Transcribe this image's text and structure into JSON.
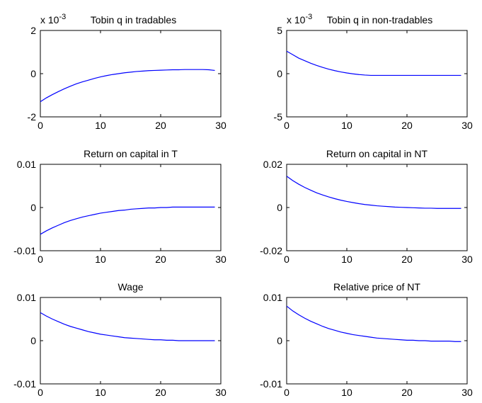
{
  "figure": {
    "background": "#ffffff",
    "line_color": "#0000ff"
  },
  "chart_data": [
    {
      "type": "line",
      "title": "Tobin q in tradables",
      "exponent_label": "x 10",
      "exponent_power": "-3",
      "xlim": [
        0,
        30
      ],
      "ylim": [
        -2,
        2
      ],
      "xticks": [
        0,
        10,
        20,
        30
      ],
      "yticks": [
        -2,
        0,
        2
      ],
      "x": [
        0,
        1,
        2,
        3,
        4,
        5,
        6,
        7,
        8,
        9,
        10,
        11,
        12,
        13,
        14,
        15,
        16,
        17,
        18,
        19,
        20,
        21,
        22,
        23,
        24,
        25,
        26,
        27,
        28,
        29
      ],
      "series": [
        {
          "values": [
            -1.3,
            -1.12,
            -0.97,
            -0.83,
            -0.7,
            -0.58,
            -0.47,
            -0.38,
            -0.3,
            -0.22,
            -0.15,
            -0.09,
            -0.04,
            0.0,
            0.04,
            0.07,
            0.1,
            0.12,
            0.14,
            0.15,
            0.16,
            0.17,
            0.18,
            0.18,
            0.19,
            0.19,
            0.19,
            0.19,
            0.18,
            0.15
          ]
        }
      ]
    },
    {
      "type": "line",
      "title": "Tobin q in non-tradables",
      "exponent_label": "x 10",
      "exponent_power": "-3",
      "xlim": [
        0,
        30
      ],
      "ylim": [
        -5,
        5
      ],
      "xticks": [
        0,
        10,
        20,
        30
      ],
      "yticks": [
        -5,
        0,
        5
      ],
      "x": [
        0,
        1,
        2,
        3,
        4,
        5,
        6,
        7,
        8,
        9,
        10,
        11,
        12,
        13,
        14,
        15,
        16,
        17,
        18,
        19,
        20,
        21,
        22,
        23,
        24,
        25,
        26,
        27,
        28,
        29
      ],
      "series": [
        {
          "values": [
            2.6,
            2.2,
            1.8,
            1.5,
            1.2,
            0.95,
            0.72,
            0.52,
            0.35,
            0.2,
            0.08,
            -0.02,
            -0.1,
            -0.16,
            -0.2,
            -0.2,
            -0.2,
            -0.2,
            -0.2,
            -0.2,
            -0.2,
            -0.2,
            -0.2,
            -0.2,
            -0.2,
            -0.2,
            -0.2,
            -0.2,
            -0.2,
            -0.2
          ]
        }
      ]
    },
    {
      "type": "line",
      "title": "Return on capital in T",
      "xlim": [
        0,
        30
      ],
      "ylim": [
        -0.01,
        0.01
      ],
      "xticks": [
        0,
        10,
        20,
        30
      ],
      "yticks": [
        -0.01,
        0,
        0.01
      ],
      "ytick_labels": [
        "-0.01",
        "0",
        "0.01"
      ],
      "x": [
        0,
        1,
        2,
        3,
        4,
        5,
        6,
        7,
        8,
        9,
        10,
        11,
        12,
        13,
        14,
        15,
        16,
        17,
        18,
        19,
        20,
        21,
        22,
        23,
        24,
        25,
        26,
        27,
        28,
        29
      ],
      "series": [
        {
          "values": [
            -0.0062,
            -0.0054,
            -0.0047,
            -0.0041,
            -0.0035,
            -0.003,
            -0.0026,
            -0.0022,
            -0.0019,
            -0.0016,
            -0.0013,
            -0.0011,
            -0.0009,
            -0.0007,
            -0.0006,
            -0.0004,
            -0.0003,
            -0.0002,
            -0.0001,
            -0.0001,
            0.0,
            0.0,
            0.0001,
            0.0001,
            0.0001,
            0.0001,
            0.0001,
            0.0001,
            0.0001,
            0.0001
          ]
        }
      ]
    },
    {
      "type": "line",
      "title": "Return on capital in NT",
      "xlim": [
        0,
        30
      ],
      "ylim": [
        -0.02,
        0.02
      ],
      "xticks": [
        0,
        10,
        20,
        30
      ],
      "yticks": [
        -0.02,
        0,
        0.02
      ],
      "ytick_labels": [
        "-0.02",
        "0",
        "0.02"
      ],
      "x": [
        0,
        1,
        2,
        3,
        4,
        5,
        6,
        7,
        8,
        9,
        10,
        11,
        12,
        13,
        14,
        15,
        16,
        17,
        18,
        19,
        20,
        21,
        22,
        23,
        24,
        25,
        26,
        27,
        28,
        29
      ],
      "series": [
        {
          "values": [
            0.0145,
            0.0125,
            0.0108,
            0.0093,
            0.008,
            0.0068,
            0.0058,
            0.0049,
            0.0041,
            0.0034,
            0.0028,
            0.0023,
            0.0018,
            0.0014,
            0.0011,
            0.0008,
            0.0006,
            0.0004,
            0.0002,
            0.0001,
            0.0,
            -0.0001,
            -0.0002,
            -0.0003,
            -0.0003,
            -0.0004,
            -0.0004,
            -0.0004,
            -0.0004,
            -0.0004
          ]
        }
      ]
    },
    {
      "type": "line",
      "title": "Wage",
      "xlim": [
        0,
        30
      ],
      "ylim": [
        -0.01,
        0.01
      ],
      "xticks": [
        0,
        10,
        20,
        30
      ],
      "yticks": [
        -0.01,
        0,
        0.01
      ],
      "ytick_labels": [
        "-0.01",
        "0",
        "0.01"
      ],
      "x": [
        0,
        1,
        2,
        3,
        4,
        5,
        6,
        7,
        8,
        9,
        10,
        11,
        12,
        13,
        14,
        15,
        16,
        17,
        18,
        19,
        20,
        21,
        22,
        23,
        24,
        25,
        26,
        27,
        28,
        29
      ],
      "series": [
        {
          "values": [
            0.0065,
            0.0057,
            0.005,
            0.0044,
            0.0038,
            0.0033,
            0.0029,
            0.0025,
            0.0021,
            0.0018,
            0.0015,
            0.0013,
            0.0011,
            0.0009,
            0.0007,
            0.0006,
            0.0005,
            0.0004,
            0.0003,
            0.0002,
            0.0002,
            0.0001,
            0.0001,
            0.0,
            0.0,
            0.0,
            0.0,
            0.0,
            0.0,
            0.0
          ]
        }
      ]
    },
    {
      "type": "line",
      "title": "Relative price of NT",
      "xlim": [
        0,
        30
      ],
      "ylim": [
        -0.01,
        0.01
      ],
      "xticks": [
        0,
        10,
        20,
        30
      ],
      "yticks": [
        -0.01,
        0,
        0.01
      ],
      "ytick_labels": [
        "-0.01",
        "0",
        "0.01"
      ],
      "x": [
        0,
        1,
        2,
        3,
        4,
        5,
        6,
        7,
        8,
        9,
        10,
        11,
        12,
        13,
        14,
        15,
        16,
        17,
        18,
        19,
        20,
        21,
        22,
        23,
        24,
        25,
        26,
        27,
        28,
        29
      ],
      "series": [
        {
          "values": [
            0.008,
            0.0069,
            0.006,
            0.0052,
            0.0045,
            0.0039,
            0.0033,
            0.0028,
            0.0024,
            0.002,
            0.0017,
            0.0014,
            0.0012,
            0.001,
            0.0008,
            0.0006,
            0.0005,
            0.0004,
            0.0003,
            0.0002,
            0.0001,
            0.0001,
            0.0,
            0.0,
            -0.0001,
            -0.0001,
            -0.0001,
            -0.0001,
            -0.0002,
            -0.0002
          ]
        }
      ]
    }
  ]
}
